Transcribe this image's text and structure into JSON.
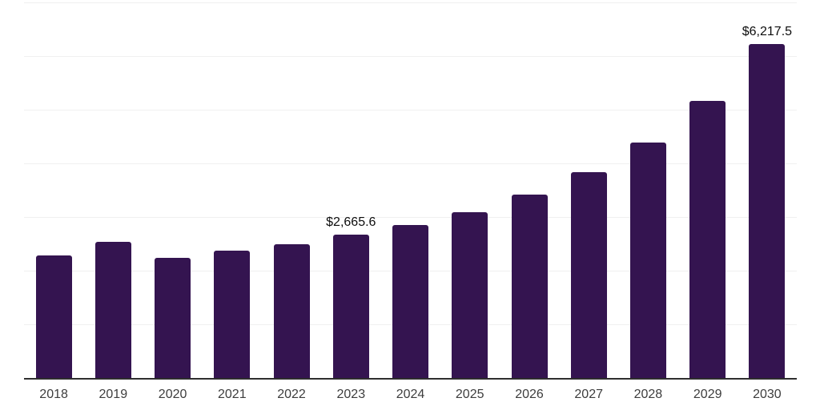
{
  "chart_data": {
    "type": "bar",
    "categories": [
      "2018",
      "2019",
      "2020",
      "2021",
      "2022",
      "2023",
      "2024",
      "2025",
      "2026",
      "2027",
      "2028",
      "2029",
      "2030"
    ],
    "values": [
      2280,
      2545,
      2235,
      2370,
      2500,
      2665.6,
      2855,
      3095,
      3420,
      3835,
      4395,
      5165,
      6217.5
    ],
    "value_labels": [
      null,
      null,
      null,
      null,
      null,
      "$2,665.6",
      null,
      null,
      null,
      null,
      null,
      null,
      "$6,217.5"
    ],
    "xlabel": "",
    "ylabel": "",
    "ylim": [
      0,
      7000
    ],
    "ytick_step": 1000,
    "y_tick_labels_visible": false,
    "grid": "horizontal",
    "legend": "none"
  },
  "colors": {
    "bar": "#341450",
    "gridline": "#f0f0f0",
    "axis": "#2e2e2e",
    "tick_label": "#3d3d3d",
    "data_label": "#0d0d0d",
    "background": "#ffffff"
  }
}
